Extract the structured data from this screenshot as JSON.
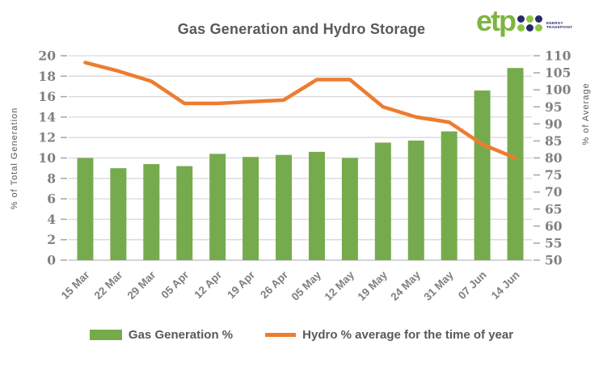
{
  "header": {
    "title": "Gas Generation and Hydro Storage",
    "logo": {
      "text": "etp",
      "tagline_line1": "ENERGY",
      "tagline_line2": "TRADEPOINT",
      "text_color": "#7CB53F",
      "dot_colors": [
        "#262A68",
        "#8DC63F",
        "#262A68",
        "#8DC63F",
        "#262A68",
        "#8DC63F"
      ]
    }
  },
  "chart_data": {
    "type": "bar",
    "categories": [
      "15 Mar",
      "22 Mar",
      "29 Mar",
      "05 Apr",
      "12 Apr",
      "19 Apr",
      "26 Apr",
      "05 May",
      "12 May",
      "19 May",
      "24 May",
      "31 May",
      "07 Jun",
      "14 Jun"
    ],
    "series": [
      {
        "name": "Gas Generation %",
        "type": "bar",
        "axis": "left",
        "color": "#76AB4D",
        "values": [
          10.0,
          9.0,
          9.4,
          9.2,
          10.4,
          10.1,
          10.3,
          10.6,
          10.0,
          11.5,
          11.7,
          12.6,
          16.6,
          18.8
        ]
      },
      {
        "name": "Hydro % average for the time of year",
        "type": "line",
        "axis": "right",
        "color": "#ED7C31",
        "values": [
          108,
          105.5,
          102.5,
          96,
          96,
          96.5,
          97,
          103,
          103,
          95,
          92,
          90.5,
          84,
          80
        ]
      }
    ],
    "title": "Gas Generation and Hydro Storage",
    "left_axis": {
      "label": "% of Total Generation",
      "min": 0,
      "max": 20,
      "ticks": [
        0,
        2,
        4,
        6,
        8,
        10,
        12,
        14,
        16,
        18,
        20
      ]
    },
    "right_axis": {
      "label": "% of Average",
      "min": 50,
      "max": 110,
      "ticks": [
        50,
        55,
        60,
        65,
        70,
        75,
        80,
        85,
        90,
        95,
        100,
        105,
        110
      ]
    },
    "grid": true,
    "legend_position": "bottom",
    "colors": {
      "gridline": "#D9D9D9",
      "axis_line": "#C9C9C9",
      "tick_mark": "#A6A6A6",
      "tick_label": "#7F7F7F",
      "category_label": "#7F7F7F"
    }
  }
}
